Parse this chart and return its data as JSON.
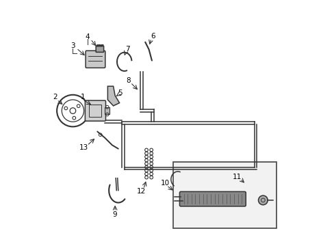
{
  "bg_color": "#ffffff",
  "line_color": "#333333",
  "label_color": "#000000",
  "figsize": [
    4.89,
    3.6
  ],
  "dpi": 100,
  "xlim": [
    0,
    9.5
  ],
  "ylim": [
    0,
    10
  ]
}
